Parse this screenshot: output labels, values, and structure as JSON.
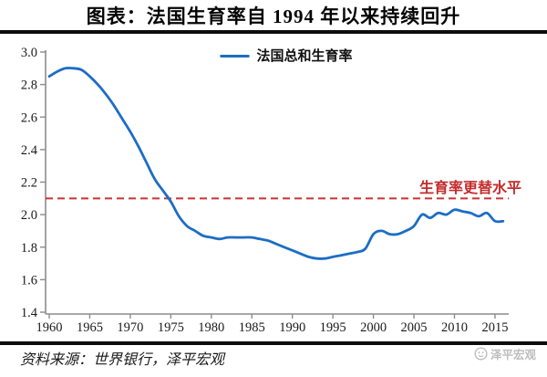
{
  "title": "图表：法国生育率自 1994 年以来持续回升",
  "legend": {
    "label": "法国总和生育率"
  },
  "annotation": {
    "label": "生育率更替水平"
  },
  "footer": {
    "source": "资料来源：世界银行，泽平宏观"
  },
  "watermark": {
    "label": "泽平宏观"
  },
  "colors": {
    "series_line": "#1C6DC5",
    "replacement_line": "#CB3232",
    "annotation_text": "#C52B2B",
    "axis": "#8C8C8C",
    "tick_label": "#1A1A1A",
    "rule": "#0D0D0D"
  },
  "chart_data": {
    "type": "line",
    "title": "图表：法国生育率自 1994 年以来持续回升",
    "xlabel": "",
    "ylabel": "",
    "grid": false,
    "legend_position": "top-center",
    "ylim": [
      1.4,
      3.0
    ],
    "xlim": [
      1960,
      2016.5
    ],
    "yticks": [
      "3.0",
      "2.8",
      "2.6",
      "2.4",
      "2.2",
      "2.0",
      "1.8",
      "1.6",
      "1.4"
    ],
    "xticks": [
      1960,
      1965,
      1970,
      1975,
      1980,
      1985,
      1990,
      1995,
      2000,
      2005,
      2010,
      2015
    ],
    "x": [
      1960,
      1961,
      1962,
      1963,
      1964,
      1965,
      1966,
      1967,
      1968,
      1969,
      1970,
      1971,
      1972,
      1973,
      1974,
      1975,
      1976,
      1977,
      1978,
      1979,
      1980,
      1981,
      1982,
      1983,
      1984,
      1985,
      1986,
      1987,
      1988,
      1989,
      1990,
      1991,
      1992,
      1993,
      1994,
      1995,
      1996,
      1997,
      1998,
      1999,
      2000,
      2001,
      2002,
      2003,
      2004,
      2005,
      2006,
      2007,
      2008,
      2009,
      2010,
      2011,
      2012,
      2013,
      2014,
      2015,
      2016
    ],
    "series": [
      {
        "name": "法国总和生育率",
        "values": [
          2.85,
          2.88,
          2.9,
          2.9,
          2.89,
          2.85,
          2.8,
          2.74,
          2.67,
          2.59,
          2.51,
          2.42,
          2.32,
          2.22,
          2.15,
          2.08,
          1.99,
          1.93,
          1.9,
          1.87,
          1.86,
          1.85,
          1.86,
          1.86,
          1.86,
          1.86,
          1.85,
          1.84,
          1.82,
          1.8,
          1.78,
          1.76,
          1.74,
          1.73,
          1.73,
          1.74,
          1.75,
          1.76,
          1.77,
          1.79,
          1.88,
          1.9,
          1.88,
          1.88,
          1.9,
          1.93,
          2.0,
          1.98,
          2.01,
          2.0,
          2.03,
          2.02,
          2.01,
          1.99,
          2.01,
          1.96,
          1.96
        ]
      }
    ],
    "reference_line": {
      "label": "生育率更替水平",
      "value": 2.1,
      "style": "dashed"
    }
  }
}
